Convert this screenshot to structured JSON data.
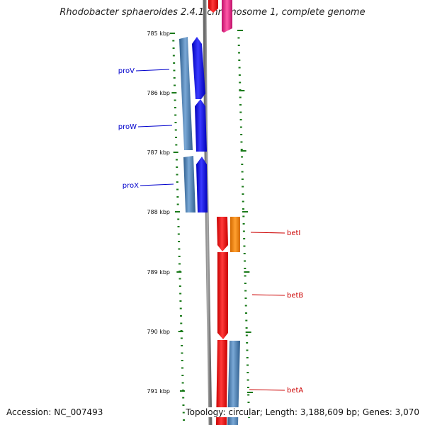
{
  "title": "Rhodobacter sphaeroides 2.4.1 chromosome 1, complete genome",
  "accession": "Accession: NC_007493",
  "topology": "Topology: circular; Length: 3,188,609 bp; Genes: 3,070",
  "scale_labels": [
    "785 kbp",
    "786 kbp",
    "787 kbp",
    "788 kbp",
    "789 kbp",
    "790 kbp",
    "791 kbp"
  ],
  "genes_left": [
    {
      "name": "proV",
      "color": "#0000cc"
    },
    {
      "name": "proW",
      "color": "#0000cc"
    },
    {
      "name": "proX",
      "color": "#0000cc"
    }
  ],
  "genes_right": [
    {
      "name": "betI",
      "color": "#cc0000"
    },
    {
      "name": "betB",
      "color": "#cc0000"
    },
    {
      "name": "betA",
      "color": "#cc0000"
    }
  ],
  "colors": {
    "ticks": "#1a7a1a",
    "backbone": "#888888",
    "blue_gene": "#0000ff",
    "steel_gene": "#4a7fb5",
    "red_gene": "#ff0000",
    "orange_gene": "#ff8c00",
    "magenta_gene": "#e0208a"
  }
}
